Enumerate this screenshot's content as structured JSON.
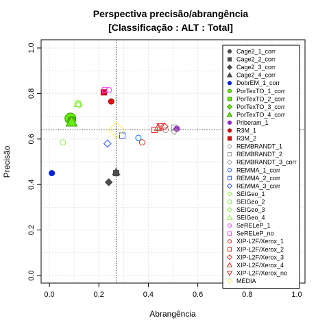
{
  "chart_data": {
    "type": "scatter",
    "title": "Perspectiva precisão/abrangência",
    "subtitle": "[Classificação : ALT : Total]",
    "xlabel": "Abrangência",
    "ylabel": "Precisão",
    "xlim": [
      0,
      1
    ],
    "ylim": [
      0,
      1
    ],
    "xticks": [
      0.0,
      0.2,
      0.4,
      0.6,
      0.8,
      1.0
    ],
    "yticks": [
      0.0,
      0.2,
      0.4,
      0.6,
      0.8,
      1.0
    ],
    "xtick_labels": [
      "0.0",
      "0.2",
      "0.4",
      "0.6",
      "0.8",
      "1.0"
    ],
    "ytick_labels": [
      "0.0",
      "0.2",
      "0.4",
      "0.6",
      "0.8",
      "1.0"
    ],
    "grid": true,
    "legend_position": "right",
    "reference_lines": {
      "vertical_x": 0.27,
      "horizontal_y": 0.64
    },
    "series": [
      {
        "name": "Cage2_1_corr",
        "shape": "circle",
        "color": "#4d4d4d",
        "fill": "#4d4d4d",
        "size": 4,
        "points": [
          [
            0.27,
            0.45
          ]
        ]
      },
      {
        "name": "Cage2_2_corr",
        "shape": "square",
        "color": "#4d4d4d",
        "fill": "#4d4d4d",
        "size": 4,
        "points": [
          [
            0.27,
            0.45
          ]
        ]
      },
      {
        "name": "Cage2_3_corr",
        "shape": "diamond",
        "color": "#4d4d4d",
        "fill": "#4d4d4d",
        "size": 4,
        "points": [
          [
            0.24,
            0.41
          ]
        ]
      },
      {
        "name": "Cage2_4_corr",
        "shape": "triangle",
        "color": "#4d4d4d",
        "fill": "#4d4d4d",
        "size": 4,
        "points": [
          [
            0.27,
            0.455
          ]
        ]
      },
      {
        "name": "DobrEM_1_corr",
        "shape": "circle",
        "color": "#0022dd",
        "fill": "#0022dd",
        "size": 4,
        "points": [
          [
            0.01,
            0.45
          ]
        ]
      },
      {
        "name": "PorTexTO_1_corr",
        "shape": "circle",
        "color": "#3a9a00",
        "fill": "#66ee11",
        "size": 8,
        "points": [
          [
            0.085,
            0.69
          ]
        ]
      },
      {
        "name": "PorTexTO_2_corr",
        "shape": "square",
        "color": "#3a9a00",
        "fill": "#66ee11",
        "size": 5,
        "points": [
          [
            0.09,
            0.68
          ]
        ]
      },
      {
        "name": "PorTexTO_3_corr",
        "shape": "diamond",
        "color": "#3a9a00",
        "fill": "#66ee11",
        "size": 5,
        "points": [
          [
            0.09,
            0.68
          ]
        ]
      },
      {
        "name": "PorTexTO_4_corr",
        "shape": "triangle",
        "color": "#3a9a00",
        "fill": "#66ee11",
        "size": 6,
        "points": [
          [
            0.09,
            0.675
          ]
        ]
      },
      {
        "name": "Priberam_1",
        "shape": "circle",
        "color": "#9922cc",
        "fill": "#9922cc",
        "size": 4,
        "points": [
          [
            0.515,
            0.645
          ]
        ]
      },
      {
        "name": "R3M_1",
        "shape": "circle",
        "color": "#aa0000",
        "fill": "#dd1111",
        "size": 4,
        "points": [
          [
            0.25,
            0.765
          ]
        ]
      },
      {
        "name": "R3M_2",
        "shape": "square",
        "color": "#aa0000",
        "fill": "#dd1111",
        "size": 4,
        "points": [
          [
            0.22,
            0.805
          ]
        ]
      },
      {
        "name": "REMBRANDT_1",
        "shape": "circle",
        "color": "#999999",
        "fill": "none",
        "size": 4,
        "points": [
          [
            0.47,
            0.64
          ]
        ]
      },
      {
        "name": "REMBRANDT_2",
        "shape": "square",
        "color": "#999999",
        "fill": "none",
        "size": 4,
        "points": [
          [
            0.505,
            0.65
          ]
        ]
      },
      {
        "name": "REMBRANDT_3_corr",
        "shape": "diamond",
        "color": "#999999",
        "fill": "none",
        "size": 4,
        "points": [
          [
            0.505,
            0.635
          ]
        ]
      },
      {
        "name": "REMMA_1_corr",
        "shape": "circle",
        "color": "#2255ff",
        "fill": "none",
        "size": 4,
        "points": [
          [
            0.36,
            0.605
          ]
        ]
      },
      {
        "name": "REMMA_2_corr",
        "shape": "square",
        "color": "#2255ff",
        "fill": "none",
        "size": 4,
        "points": [
          [
            0.295,
            0.615
          ]
        ]
      },
      {
        "name": "REMMA_3_corr",
        "shape": "diamond",
        "color": "#2255ff",
        "fill": "none",
        "size": 4,
        "points": [
          [
            0.235,
            0.58
          ]
        ]
      },
      {
        "name": "SEIGeo_1",
        "shape": "circle",
        "color": "#88ee44",
        "fill": "none",
        "size": 4,
        "points": [
          [
            0.055,
            0.585
          ]
        ]
      },
      {
        "name": "SEIGeo_2",
        "shape": "square",
        "color": "#88ee44",
        "fill": "none",
        "size": 4,
        "points": [
          [
            0.115,
            0.755
          ]
        ]
      },
      {
        "name": "SEIGeo_3",
        "shape": "diamond",
        "color": "#88ee44",
        "fill": "none",
        "size": 4,
        "points": [
          [
            0.12,
            0.75
          ]
        ]
      },
      {
        "name": "SEIGeo_4",
        "shape": "triangle",
        "color": "#88ee44",
        "fill": "none",
        "size": 4,
        "points": [
          [
            0.115,
            0.755
          ]
        ]
      },
      {
        "name": "SeRELeP_1",
        "shape": "circle",
        "color": "#ff44ff",
        "fill": "none",
        "size": 4,
        "points": [
          [
            0.24,
            0.815
          ]
        ]
      },
      {
        "name": "SeRELeP_no",
        "shape": "square",
        "color": "#ff44ff",
        "fill": "none",
        "size": 4,
        "points": [
          [
            0.225,
            0.815
          ]
        ]
      },
      {
        "name": "XIP-L2F/Xerox_1",
        "shape": "circle",
        "color": "#ee2222",
        "fill": "none",
        "size": 4,
        "points": [
          [
            0.375,
            0.585
          ]
        ]
      },
      {
        "name": "XIP-L2F/Xerox_2",
        "shape": "square",
        "color": "#ee2222",
        "fill": "none",
        "size": 4,
        "points": [
          [
            0.425,
            0.64
          ]
        ]
      },
      {
        "name": "XIP-L2F/Xerox_3",
        "shape": "diamond",
        "color": "#ee2222",
        "fill": "none",
        "size": 4,
        "points": [
          [
            0.465,
            0.655
          ]
        ]
      },
      {
        "name": "XIP-L2F/Xerox_4",
        "shape": "triangle",
        "color": "#ee2222",
        "fill": "none",
        "size": 4,
        "points": [
          [
            0.44,
            0.65
          ]
        ]
      },
      {
        "name": "XIP-L2F/Xerox_no",
        "shape": "triangle-down",
        "color": "#ee2222",
        "fill": "none",
        "size": 4,
        "points": [
          [
            0.45,
            0.655
          ]
        ]
      },
      {
        "name": "MÉDIA",
        "shape": "diamond",
        "color": "#ffee55",
        "fill": "none",
        "size": 9,
        "points": [
          [
            0.27,
            0.64
          ]
        ]
      }
    ]
  }
}
